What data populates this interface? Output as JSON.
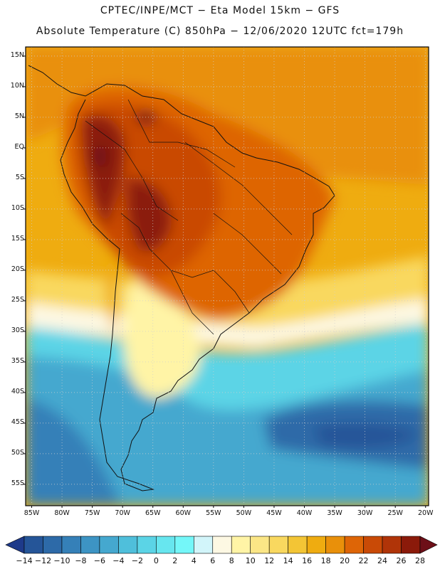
{
  "title_line1": "CPTEC/INPE/MCT  −   Eta Model 15km  −  GFS",
  "title_line2": "Absolute Temperature (C) 850hPa − 12/06/2020 12UTC fct=179h",
  "lat_labels": [
    "15N",
    "10N",
    "5N",
    "EQ",
    "5S",
    "10S",
    "15S",
    "20S",
    "25S",
    "30S",
    "35S",
    "40S",
    "45S",
    "50S",
    "55S"
  ],
  "lat_values": [
    15,
    10,
    5,
    0,
    -5,
    -10,
    -15,
    -20,
    -25,
    -30,
    -35,
    -40,
    -45,
    -50,
    -55
  ],
  "lon_labels": [
    "85W",
    "80W",
    "75W",
    "70W",
    "65W",
    "60W",
    "55W",
    "50W",
    "45W",
    "40W",
    "35W",
    "30W",
    "25W",
    "20W"
  ],
  "lon_values": [
    -85,
    -80,
    -75,
    -70,
    -65,
    -60,
    -55,
    -50,
    -45,
    -40,
    -35,
    -30,
    -25,
    -20
  ],
  "colorbar": {
    "labels": [
      "-14",
      "-12",
      "-10",
      "-8",
      "-6",
      "-4",
      "-2",
      "0",
      "2",
      "4",
      "6",
      "8",
      "10",
      "12",
      "14",
      "16",
      "18",
      "20",
      "22",
      "24",
      "26",
      "28"
    ],
    "colors": [
      "#1e3a8a",
      "#255598",
      "#2d6aa8",
      "#3580b8",
      "#3d94c4",
      "#45a8cf",
      "#4fbfdb",
      "#5bd4e6",
      "#67e6ef",
      "#74f7f9",
      "#d2f5fa",
      "#fdf8e3",
      "#fff4a6",
      "#fbe686",
      "#f9d85f",
      "#f3c535",
      "#efac10",
      "#e9900a",
      "#de6506",
      "#c94a06",
      "#b03408",
      "#8b1a0a",
      "#6d0f18"
    ]
  },
  "map_extent": {
    "lon_min": -86,
    "lon_max": -19.5,
    "lat_min": -58.5,
    "lat_max": 16.5
  }
}
